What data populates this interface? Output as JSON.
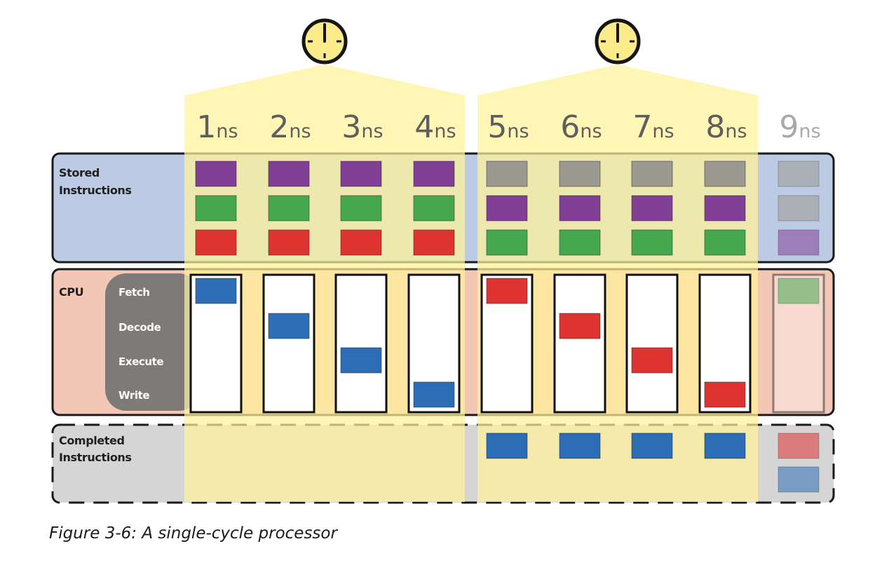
{
  "figure": {
    "caption": "Figure 3-6: A single-cycle processor",
    "colors": {
      "purple": "#813f95",
      "green": "#45a84f",
      "red": "#dd3331",
      "blue": "#2c6db6",
      "gray": "#9a9a90",
      "highlight": "#fff29a",
      "clock_face": "#fbeb8a"
    },
    "rows": {
      "stored": {
        "label_line1": "Stored",
        "label_line2": "Instructions",
        "bg": "#bccbe3"
      },
      "cpu": {
        "label": "CPU",
        "bg": "#f2c7b6"
      },
      "completed": {
        "label_line1": "Completed",
        "label_line2": "Instructions",
        "bg": "#d5d5d6"
      }
    },
    "stages": [
      "Fetch",
      "Decode",
      "Execute",
      "Write"
    ],
    "clocks": [
      {
        "name": "clock-1-icon"
      },
      {
        "name": "clock-2-icon"
      }
    ],
    "timeline": [
      {
        "num": "1",
        "unit": "ns",
        "stored": [
          "purple",
          "green",
          "red"
        ],
        "cpu_stage": 0,
        "cpu_color": "blue",
        "completed": [],
        "dim": false
      },
      {
        "num": "2",
        "unit": "ns",
        "stored": [
          "purple",
          "green",
          "red"
        ],
        "cpu_stage": 1,
        "cpu_color": "blue",
        "completed": [],
        "dim": false
      },
      {
        "num": "3",
        "unit": "ns",
        "stored": [
          "purple",
          "green",
          "red"
        ],
        "cpu_stage": 2,
        "cpu_color": "blue",
        "completed": [],
        "dim": false
      },
      {
        "num": "4",
        "unit": "ns",
        "stored": [
          "purple",
          "green",
          "red"
        ],
        "cpu_stage": 3,
        "cpu_color": "blue",
        "completed": [],
        "dim": false
      },
      {
        "num": "5",
        "unit": "ns",
        "stored": [
          "gray",
          "purple",
          "green"
        ],
        "cpu_stage": 0,
        "cpu_color": "red",
        "completed": [
          "blue"
        ],
        "dim": false
      },
      {
        "num": "6",
        "unit": "ns",
        "stored": [
          "gray",
          "purple",
          "green"
        ],
        "cpu_stage": 1,
        "cpu_color": "red",
        "completed": [
          "blue"
        ],
        "dim": false
      },
      {
        "num": "7",
        "unit": "ns",
        "stored": [
          "gray",
          "purple",
          "green"
        ],
        "cpu_stage": 2,
        "cpu_color": "red",
        "completed": [
          "blue"
        ],
        "dim": false
      },
      {
        "num": "8",
        "unit": "ns",
        "stored": [
          "gray",
          "purple",
          "green"
        ],
        "cpu_stage": 3,
        "cpu_color": "red",
        "completed": [
          "blue"
        ],
        "dim": false
      },
      {
        "num": "9",
        "unit": "ns",
        "stored": [
          "gray",
          "gray",
          "purple"
        ],
        "cpu_stage": 0,
        "cpu_color": "green",
        "completed": [
          "red",
          "blue"
        ],
        "dim": true
      }
    ]
  }
}
